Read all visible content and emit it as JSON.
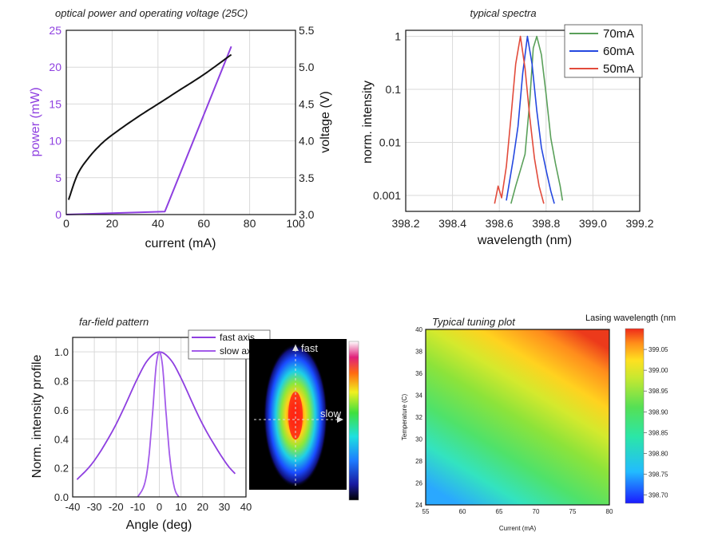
{
  "colors": {
    "purple": "#8e3fe0",
    "purple2": "#a35bea",
    "black": "#111111",
    "green": "#5aa05a",
    "blue": "#2448e0",
    "red": "#e24b3b"
  },
  "chart_data": [
    {
      "id": "power_voltage",
      "type": "line",
      "title": "optical power and operating voltage (25C)",
      "xlabel": "current (mA)",
      "ylabel": "power (mW)",
      "y2label": "voltage (V)",
      "xlim": [
        0,
        100
      ],
      "ylim": [
        0,
        25
      ],
      "y2lim": [
        3.0,
        5.5
      ],
      "xticks": [
        "0",
        "20",
        "40",
        "60",
        "80",
        "100"
      ],
      "yticks": [
        "0",
        "5",
        "10",
        "15",
        "20",
        "25"
      ],
      "y2ticks": [
        "3.0",
        "3.5",
        "4.0",
        "4.5",
        "5.0",
        "5.5"
      ],
      "series": [
        {
          "axis": "left",
          "color": "#8e3fe0",
          "x": [
            0,
            20,
            43,
            72
          ],
          "y": [
            0,
            0.2,
            0.4,
            22.8
          ]
        },
        {
          "axis": "right",
          "color": "#111111",
          "x": [
            1,
            5,
            10,
            15,
            20,
            30,
            40,
            50,
            60,
            72
          ],
          "y": [
            3.2,
            3.55,
            3.78,
            3.95,
            4.08,
            4.3,
            4.5,
            4.7,
            4.9,
            5.17
          ]
        }
      ]
    },
    {
      "id": "spectra",
      "type": "line",
      "title": "typical spectra",
      "xlabel": "wavelength (nm)",
      "ylabel": "norm. intensity",
      "xlim": [
        398.2,
        399.2
      ],
      "ylim": [
        0.0005,
        1.3
      ],
      "yscale": "log",
      "xticks": [
        "398.2",
        "398.4",
        "398.6",
        "398.8",
        "399.0",
        "399.2"
      ],
      "yticks": [
        "0.001",
        "0.01",
        "0.1",
        "1"
      ],
      "legend": "top-right",
      "series": [
        {
          "name": "70mA",
          "color": "#5aa05a",
          "x": [
            398.65,
            398.67,
            398.69,
            398.71,
            398.73,
            398.745,
            398.76,
            398.78,
            398.8,
            398.82,
            398.84,
            398.86,
            398.87
          ],
          "y": [
            0.0007,
            0.0015,
            0.003,
            0.006,
            0.06,
            0.6,
            1.0,
            0.45,
            0.08,
            0.012,
            0.004,
            0.0015,
            0.0008
          ]
        },
        {
          "name": "60mA",
          "color": "#2448e0",
          "x": [
            398.63,
            398.645,
            398.66,
            398.68,
            398.7,
            398.72,
            398.74,
            398.76,
            398.78,
            398.8,
            398.82,
            398.835
          ],
          "y": [
            0.0008,
            0.002,
            0.005,
            0.02,
            0.2,
            1.0,
            0.3,
            0.04,
            0.008,
            0.003,
            0.0012,
            0.0007
          ]
        },
        {
          "name": "50mA",
          "color": "#e24b3b",
          "x": [
            398.58,
            398.595,
            398.61,
            398.63,
            398.65,
            398.67,
            398.69,
            398.71,
            398.73,
            398.75,
            398.77,
            398.79
          ],
          "y": [
            0.0007,
            0.0015,
            0.0009,
            0.0035,
            0.03,
            0.3,
            1.0,
            0.25,
            0.03,
            0.005,
            0.0015,
            0.0007
          ]
        }
      ]
    },
    {
      "id": "farfield",
      "type": "line",
      "title": "far-field pattern",
      "xlabel": "Angle (deg)",
      "ylabel": "Norm. intensity profile",
      "xlim": [
        -40,
        40
      ],
      "ylim": [
        0,
        1.1
      ],
      "xticks": [
        "-40",
        "-30",
        "-20",
        "-10",
        "0",
        "10",
        "20",
        "30",
        "40"
      ],
      "yticks": [
        "0.0",
        "0.2",
        "0.4",
        "0.6",
        "0.8",
        "1.0"
      ],
      "legend": "top-right",
      "series": [
        {
          "name": "fast axis",
          "color": "#8e3fe0",
          "x": [
            -38,
            -30,
            -20,
            -10,
            -5,
            0,
            5,
            10,
            20,
            30,
            35
          ],
          "y": [
            0.12,
            0.25,
            0.5,
            0.82,
            0.95,
            1.0,
            0.95,
            0.82,
            0.5,
            0.25,
            0.16
          ]
        },
        {
          "name": "slow axis",
          "color": "#a35bea",
          "x": [
            -10,
            -7,
            -5,
            -3,
            -1.5,
            0,
            1.5,
            3,
            5,
            7,
            9
          ],
          "y": [
            0,
            0.08,
            0.25,
            0.6,
            0.9,
            1.0,
            0.9,
            0.6,
            0.25,
            0.06,
            0
          ]
        }
      ]
    },
    {
      "id": "beam_image",
      "type": "heatmap",
      "labels": {
        "fast": "fast",
        "slow": "slow"
      }
    },
    {
      "id": "tuning",
      "type": "heatmap",
      "title": "Typical tuning plot",
      "xlabel": "Current (mA)",
      "ylabel": "Temperature (C)",
      "colorbar_label": "Lasing wavelength (nm",
      "xlim": [
        55,
        80
      ],
      "ylim": [
        24,
        40
      ],
      "xticks": [
        "55",
        "60",
        "65",
        "70",
        "75",
        "80"
      ],
      "yticks": [
        "24",
        "26",
        "28",
        "30",
        "32",
        "34",
        "36",
        "38",
        "40"
      ],
      "colorbar_ticks": [
        "398.70",
        "398.75",
        "398.80",
        "398.85",
        "398.90",
        "398.95",
        "399.00",
        "399.05"
      ],
      "colorbar_range": [
        398.68,
        399.1
      ]
    }
  ]
}
